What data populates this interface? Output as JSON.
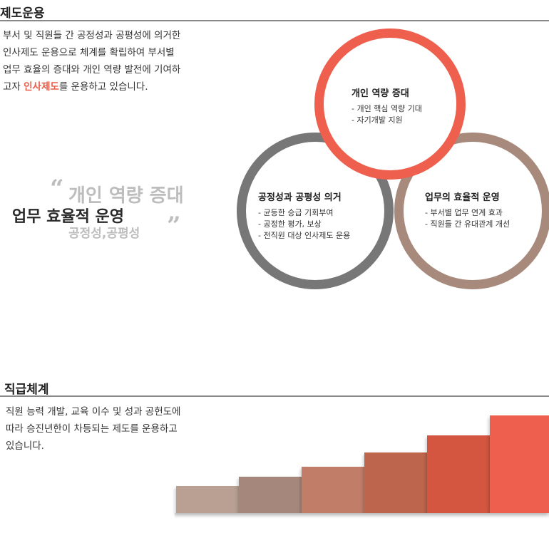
{
  "system": {
    "title": "제도운용",
    "intro_before": "부서 및 직원들 간 공정성과 공평성에 의거한 인사제도 운용으로 체계를 확립하여 부서별 업무 효율의 증대와 개인 역량 발전에 기여하고자 ",
    "intro_highlight": "인사제도",
    "intro_after": "를 운용하고 있습니다.",
    "quote_open": "“",
    "quote_close": "”",
    "quote_line1": "개인 역량 증대",
    "quote_line2": "업무 효율적 운영",
    "quote_line3": "공정성,공평성",
    "colors": {
      "accent": "#e85c48",
      "ring_top": "#ee5f4d",
      "ring_left": "#777777",
      "ring_right": "#a88a7c"
    },
    "rings": [
      {
        "title": "개인 역량 증대",
        "items": [
          "- 개인 핵심 역량 기대",
          "- 자기개발 지원"
        ]
      },
      {
        "title": "공정성과 공평성 의거",
        "items": [
          "- 균등한 승급 기회부여",
          "- 공정한 평가, 보상",
          "- 전직원 대상 인사제도 운용"
        ]
      },
      {
        "title": "업무의 효율적 운영",
        "items": [
          "- 부서별 업무 연계 효과",
          "- 직원들 간 유대관계 개선"
        ]
      }
    ]
  },
  "grade": {
    "title": "직급체계",
    "intro": "직원 능력 개발, 교육 이수 및 성과 공헌도에 따라 승진년한이 차등되는 제도를 운용하고 있습니다.",
    "step_colors": [
      "#b9a093",
      "#a6877b",
      "#c27d68",
      "#bd654d",
      "#d45540",
      "#ee5f4d"
    ]
  }
}
